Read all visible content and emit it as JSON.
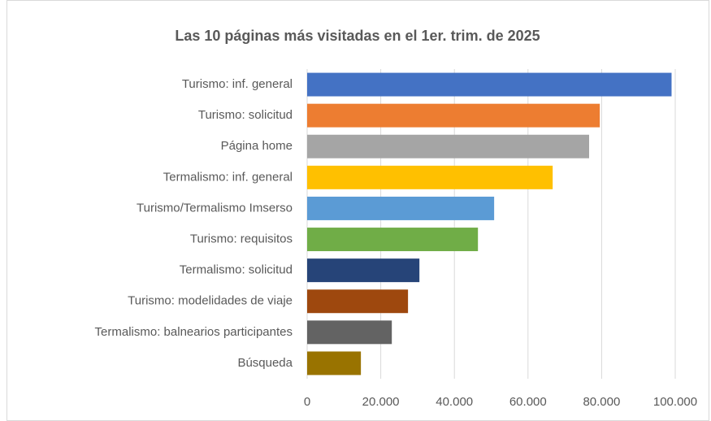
{
  "chart_data": {
    "type": "barh",
    "title": "Las 10 páginas más visitadas en el 1er. trim. de 2025",
    "categories": [
      "Turismo: inf. general",
      "Turismo: solicitud",
      "Página home",
      "Termalismo: inf. general",
      "Turismo/Termalismo Imserso",
      "Turismo: requisitos",
      "Termalismo: solicitud",
      "Turismo: modelidades de viaje",
      "Termalismo: balnearios participantes",
      "Búsqueda"
    ],
    "values": [
      99000,
      79500,
      76600,
      66700,
      50800,
      46400,
      30500,
      27400,
      23000,
      14600
    ],
    "colors": [
      "#4472c4",
      "#ed7d31",
      "#a5a5a5",
      "#ffc000",
      "#5b9bd5",
      "#70ad47",
      "#264478",
      "#9e480e",
      "#636363",
      "#997300"
    ],
    "xlim": [
      0,
      100000
    ],
    "xticks": [
      0,
      {
        "value": 20000,
        "label": "20.000"
      },
      {
        "value": 40000,
        "label": "40.000"
      },
      {
        "value": 60000,
        "label": "60.000"
      },
      {
        "value": 80000,
        "label": "80.000"
      },
      {
        "value": 100000,
        "label": "100.000"
      }
    ],
    "grid": true
  }
}
